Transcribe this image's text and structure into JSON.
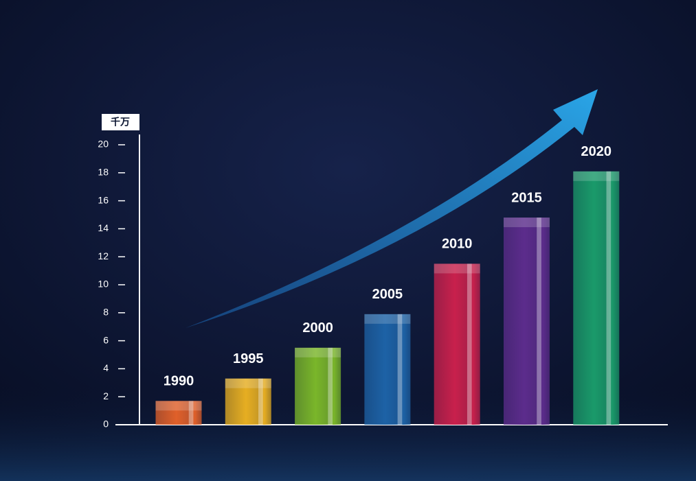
{
  "chart_data": {
    "type": "bar",
    "unit": "千万",
    "categories": [
      "1990",
      "1995",
      "2000",
      "2005",
      "2010",
      "2015",
      "2020"
    ],
    "values": [
      1.7,
      3.3,
      5.5,
      7.9,
      11.5,
      14.8,
      18.1
    ],
    "colors": [
      "#e0602a",
      "#e6ae22",
      "#7ab62a",
      "#1d62a6",
      "#c8204c",
      "#5c2c8c",
      "#1a9a6a"
    ],
    "ylim": [
      0,
      20
    ],
    "yticks": [
      0,
      2,
      4,
      6,
      8,
      10,
      12,
      14,
      16,
      18,
      20
    ]
  }
}
